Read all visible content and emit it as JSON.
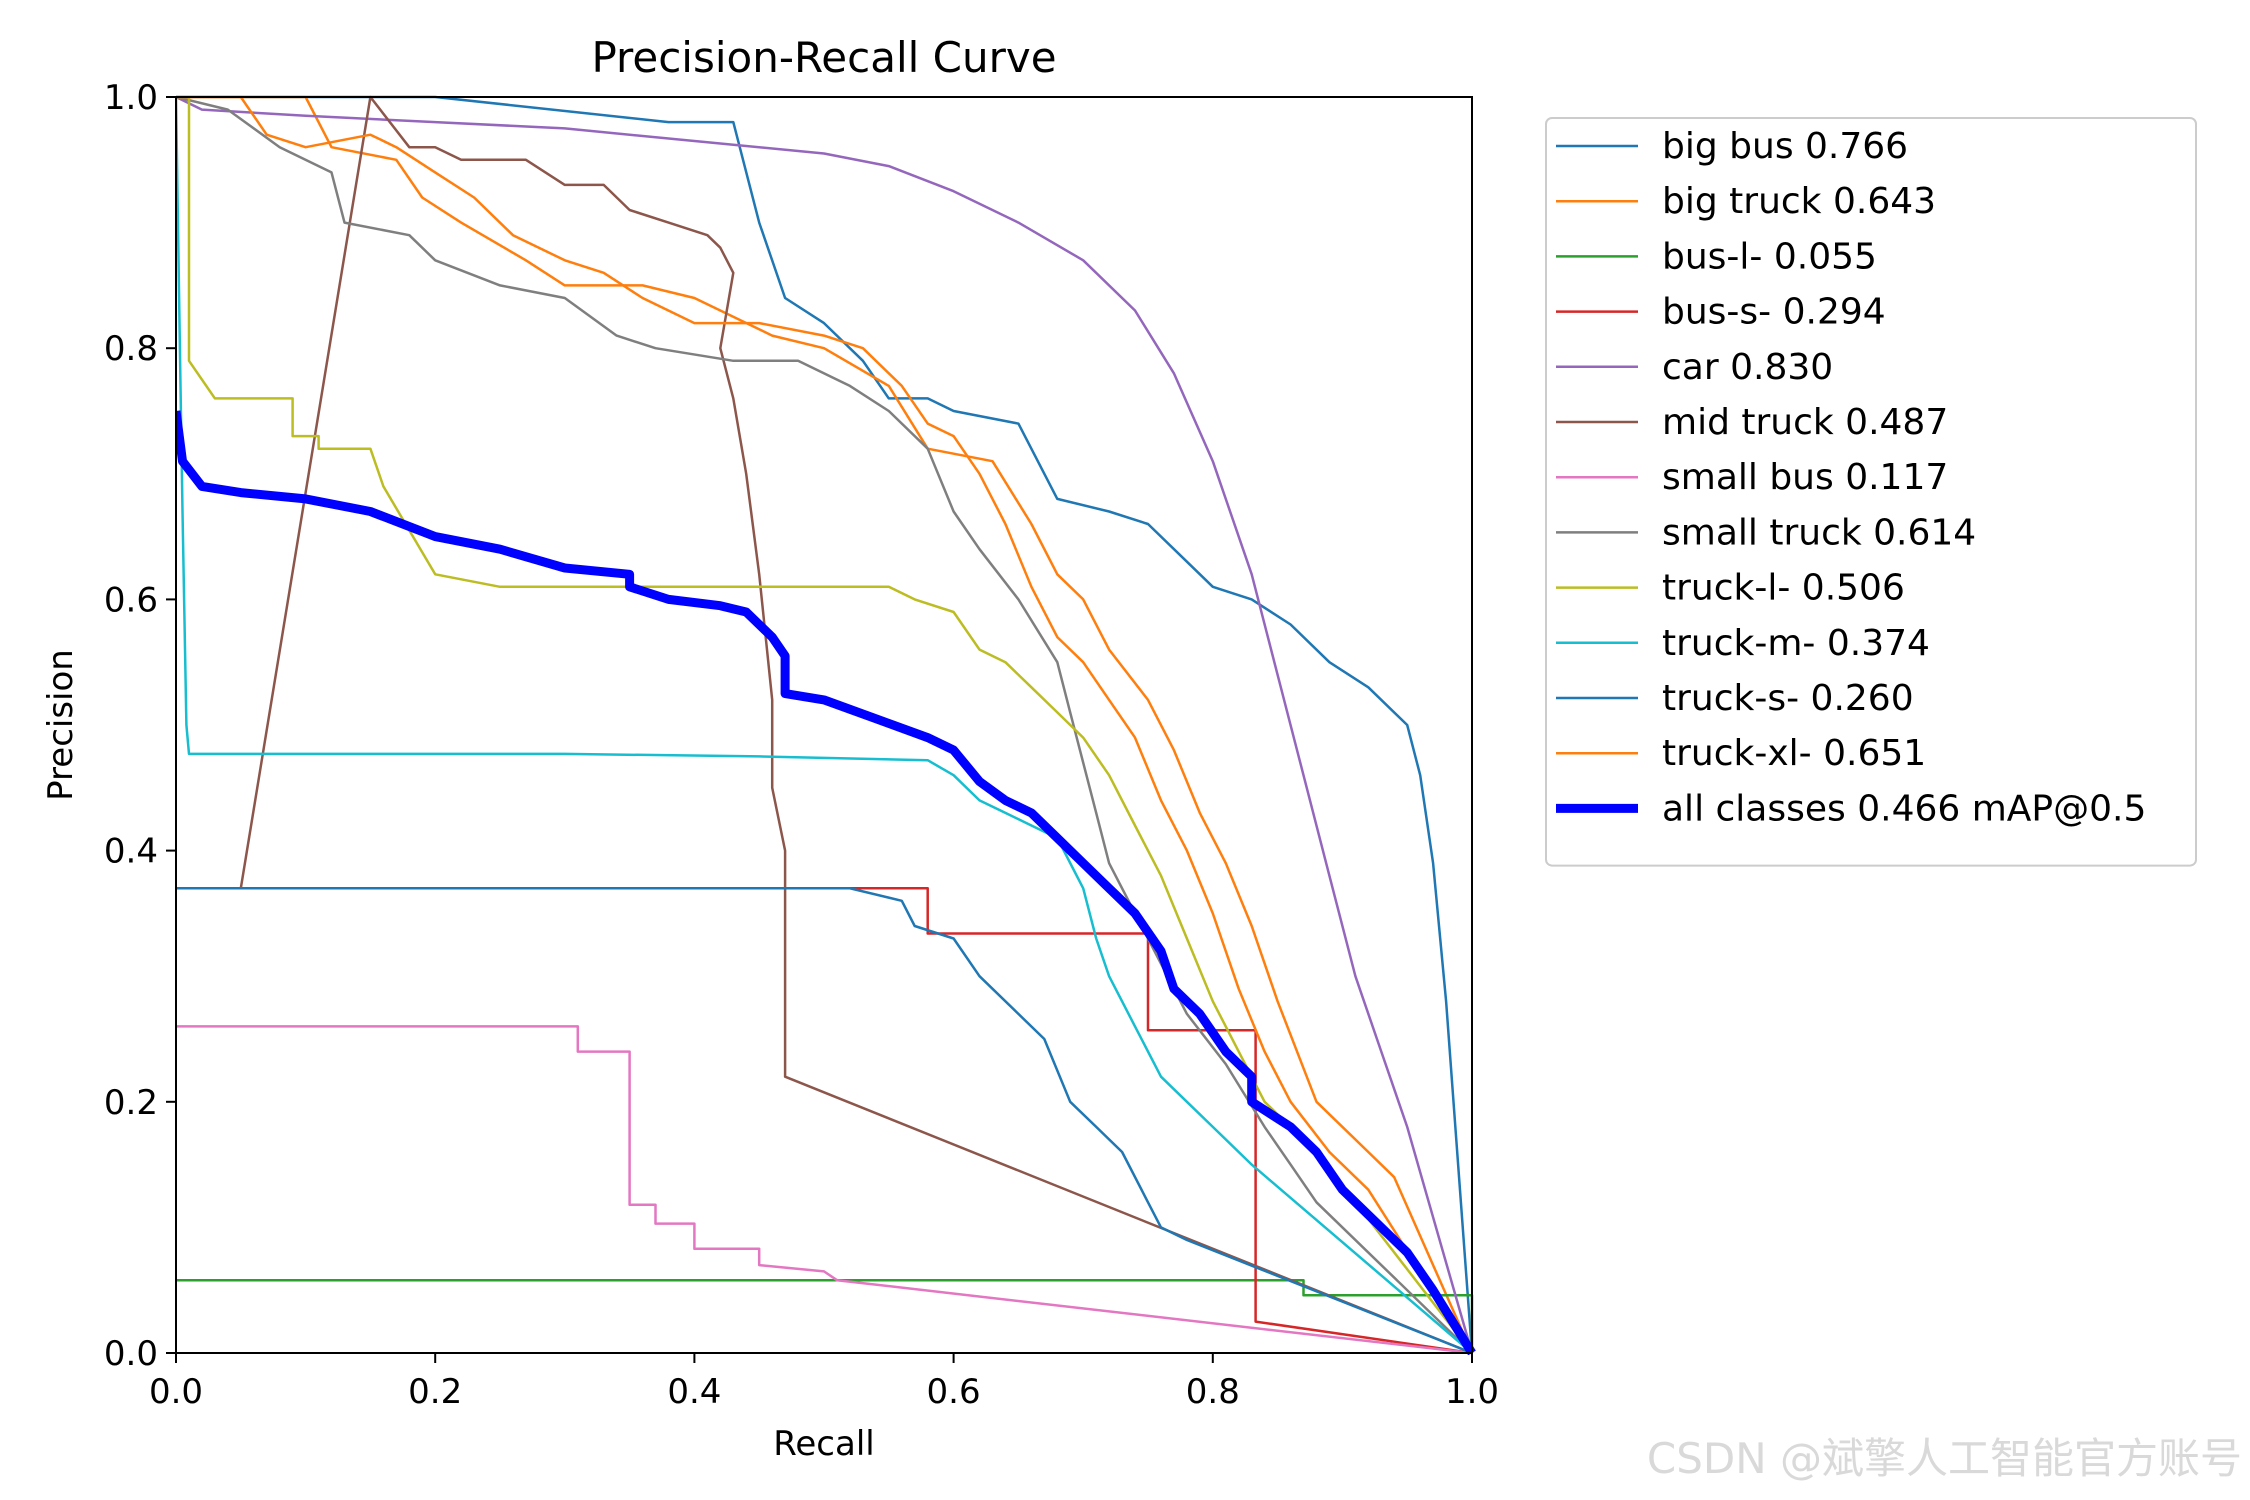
{
  "chart_data": {
    "type": "line",
    "title": "Precision-Recall Curve",
    "xlabel": "Recall",
    "ylabel": "Precision",
    "xlim": [
      0,
      1
    ],
    "ylim": [
      0,
      1
    ],
    "xticks": [
      "0.0",
      "0.2",
      "0.4",
      "0.6",
      "0.8",
      "1.0"
    ],
    "yticks": [
      "0.0",
      "0.2",
      "0.4",
      "0.6",
      "0.8",
      "1.0"
    ],
    "legend_position": "outside-right",
    "series": [
      {
        "name": "big bus 0.766",
        "color": "#1f77b4",
        "points": [
          [
            0,
            1
          ],
          [
            0.2,
            1
          ],
          [
            0.38,
            0.98
          ],
          [
            0.43,
            0.98
          ],
          [
            0.45,
            0.9
          ],
          [
            0.47,
            0.84
          ],
          [
            0.5,
            0.82
          ],
          [
            0.53,
            0.79
          ],
          [
            0.55,
            0.76
          ],
          [
            0.58,
            0.76
          ],
          [
            0.6,
            0.75
          ],
          [
            0.65,
            0.74
          ],
          [
            0.68,
            0.68
          ],
          [
            0.72,
            0.67
          ],
          [
            0.75,
            0.66
          ],
          [
            0.78,
            0.63
          ],
          [
            0.8,
            0.61
          ],
          [
            0.83,
            0.6
          ],
          [
            0.86,
            0.58
          ],
          [
            0.89,
            0.55
          ],
          [
            0.92,
            0.53
          ],
          [
            0.95,
            0.5
          ],
          [
            0.96,
            0.46
          ],
          [
            0.97,
            0.39
          ],
          [
            0.98,
            0.28
          ],
          [
            1,
            0
          ]
        ]
      },
      {
        "name": "big truck 0.643",
        "color": "#ff7f0e",
        "points": [
          [
            0,
            1
          ],
          [
            0.1,
            1
          ],
          [
            0.12,
            0.96
          ],
          [
            0.17,
            0.95
          ],
          [
            0.19,
            0.92
          ],
          [
            0.22,
            0.9
          ],
          [
            0.27,
            0.87
          ],
          [
            0.3,
            0.85
          ],
          [
            0.36,
            0.85
          ],
          [
            0.4,
            0.84
          ],
          [
            0.46,
            0.81
          ],
          [
            0.5,
            0.8
          ],
          [
            0.55,
            0.77
          ],
          [
            0.58,
            0.72
          ],
          [
            0.63,
            0.71
          ],
          [
            0.66,
            0.66
          ],
          [
            0.68,
            0.62
          ],
          [
            0.7,
            0.6
          ],
          [
            0.72,
            0.56
          ],
          [
            0.75,
            0.52
          ],
          [
            0.77,
            0.48
          ],
          [
            0.79,
            0.43
          ],
          [
            0.81,
            0.39
          ],
          [
            0.83,
            0.34
          ],
          [
            0.85,
            0.28
          ],
          [
            0.88,
            0.2
          ],
          [
            0.92,
            0.16
          ],
          [
            0.94,
            0.14
          ],
          [
            1,
            0
          ]
        ]
      },
      {
        "name": "bus-l- 0.055",
        "color": "#2ca02c",
        "points": [
          [
            0,
            0.058
          ],
          [
            0.87,
            0.058
          ],
          [
            0.87,
            0.046
          ],
          [
            1,
            0.046
          ],
          [
            1,
            0
          ]
        ]
      },
      {
        "name": "bus-s- 0.294",
        "color": "#d62728",
        "points": [
          [
            0,
            0.37
          ],
          [
            0.58,
            0.37
          ],
          [
            0.58,
            0.334
          ],
          [
            0.75,
            0.334
          ],
          [
            0.75,
            0.257
          ],
          [
            0.833,
            0.257
          ],
          [
            0.833,
            0.025
          ],
          [
            1,
            0
          ]
        ]
      },
      {
        "name": "car 0.830",
        "color": "#9467bd",
        "points": [
          [
            0,
            1
          ],
          [
            0.02,
            0.99
          ],
          [
            0.1,
            0.985
          ],
          [
            0.2,
            0.98
          ],
          [
            0.3,
            0.975
          ],
          [
            0.4,
            0.965
          ],
          [
            0.5,
            0.955
          ],
          [
            0.55,
            0.945
          ],
          [
            0.6,
            0.925
          ],
          [
            0.65,
            0.9
          ],
          [
            0.7,
            0.87
          ],
          [
            0.74,
            0.83
          ],
          [
            0.77,
            0.78
          ],
          [
            0.8,
            0.71
          ],
          [
            0.83,
            0.62
          ],
          [
            0.85,
            0.54
          ],
          [
            0.87,
            0.46
          ],
          [
            0.89,
            0.38
          ],
          [
            0.91,
            0.3
          ],
          [
            0.93,
            0.24
          ],
          [
            0.95,
            0.18
          ],
          [
            1,
            0
          ]
        ]
      },
      {
        "name": "mid truck 0.487",
        "color": "#8c564b",
        "points": [
          [
            0,
            0.37
          ],
          [
            0.05,
            0.37
          ],
          [
            0.15,
            1
          ],
          [
            0.18,
            0.96
          ],
          [
            0.2,
            0.96
          ],
          [
            0.22,
            0.95
          ],
          [
            0.27,
            0.95
          ],
          [
            0.3,
            0.93
          ],
          [
            0.33,
            0.93
          ],
          [
            0.35,
            0.91
          ],
          [
            0.38,
            0.9
          ],
          [
            0.41,
            0.89
          ],
          [
            0.42,
            0.88
          ],
          [
            0.43,
            0.86
          ],
          [
            0.42,
            0.8
          ],
          [
            0.43,
            0.76
          ],
          [
            0.44,
            0.7
          ],
          [
            0.45,
            0.62
          ],
          [
            0.46,
            0.52
          ],
          [
            0.46,
            0.45
          ],
          [
            0.47,
            0.4
          ],
          [
            0.47,
            0.3
          ],
          [
            0.47,
            0.22
          ],
          [
            1,
            0
          ]
        ]
      },
      {
        "name": "small bus 0.117",
        "color": "#e377c2",
        "points": [
          [
            0,
            0.26
          ],
          [
            0.31,
            0.26
          ],
          [
            0.31,
            0.24
          ],
          [
            0.35,
            0.24
          ],
          [
            0.35,
            0.118
          ],
          [
            0.37,
            0.118
          ],
          [
            0.37,
            0.103
          ],
          [
            0.4,
            0.103
          ],
          [
            0.4,
            0.083
          ],
          [
            0.45,
            0.083
          ],
          [
            0.45,
            0.07
          ],
          [
            0.5,
            0.065
          ],
          [
            0.51,
            0.058
          ],
          [
            1,
            0
          ]
        ]
      },
      {
        "name": "small truck 0.614",
        "color": "#7f7f7f",
        "points": [
          [
            0,
            1
          ],
          [
            0.04,
            0.99
          ],
          [
            0.08,
            0.96
          ],
          [
            0.12,
            0.94
          ],
          [
            0.13,
            0.9
          ],
          [
            0.18,
            0.89
          ],
          [
            0.2,
            0.87
          ],
          [
            0.25,
            0.85
          ],
          [
            0.3,
            0.84
          ],
          [
            0.34,
            0.81
          ],
          [
            0.37,
            0.8
          ],
          [
            0.43,
            0.79
          ],
          [
            0.48,
            0.79
          ],
          [
            0.52,
            0.77
          ],
          [
            0.55,
            0.75
          ],
          [
            0.58,
            0.72
          ],
          [
            0.6,
            0.67
          ],
          [
            0.62,
            0.64
          ],
          [
            0.65,
            0.6
          ],
          [
            0.68,
            0.55
          ],
          [
            0.69,
            0.51
          ],
          [
            0.7,
            0.47
          ],
          [
            0.71,
            0.43
          ],
          [
            0.72,
            0.39
          ],
          [
            0.75,
            0.33
          ],
          [
            0.78,
            0.27
          ],
          [
            0.81,
            0.23
          ],
          [
            0.84,
            0.18
          ],
          [
            0.86,
            0.15
          ],
          [
            0.88,
            0.12
          ],
          [
            1,
            0
          ]
        ]
      },
      {
        "name": "truck-l- 0.506",
        "color": "#bcbd22",
        "points": [
          [
            0,
            1
          ],
          [
            0.01,
            1
          ],
          [
            0.01,
            0.79
          ],
          [
            0.03,
            0.76
          ],
          [
            0.09,
            0.76
          ],
          [
            0.09,
            0.73
          ],
          [
            0.11,
            0.73
          ],
          [
            0.11,
            0.72
          ],
          [
            0.15,
            0.72
          ],
          [
            0.16,
            0.69
          ],
          [
            0.2,
            0.62
          ],
          [
            0.25,
            0.61
          ],
          [
            0.35,
            0.61
          ],
          [
            0.45,
            0.61
          ],
          [
            0.55,
            0.61
          ],
          [
            0.57,
            0.6
          ],
          [
            0.6,
            0.59
          ],
          [
            0.62,
            0.56
          ],
          [
            0.64,
            0.55
          ],
          [
            0.66,
            0.53
          ],
          [
            0.68,
            0.51
          ],
          [
            0.7,
            0.49
          ],
          [
            0.72,
            0.46
          ],
          [
            0.74,
            0.42
          ],
          [
            0.76,
            0.38
          ],
          [
            0.78,
            0.33
          ],
          [
            0.8,
            0.28
          ],
          [
            0.82,
            0.24
          ],
          [
            0.84,
            0.2
          ],
          [
            0.86,
            0.18
          ],
          [
            0.88,
            0.16
          ],
          [
            1,
            0
          ]
        ]
      },
      {
        "name": "truck-m- 0.374",
        "color": "#17becf",
        "points": [
          [
            0,
            1
          ],
          [
            0.003,
            0.8
          ],
          [
            0.005,
            0.67
          ],
          [
            0.008,
            0.5
          ],
          [
            0.01,
            0.477
          ],
          [
            0.3,
            0.477
          ],
          [
            0.45,
            0.475
          ],
          [
            0.58,
            0.472
          ],
          [
            0.6,
            0.46
          ],
          [
            0.62,
            0.44
          ],
          [
            0.64,
            0.43
          ],
          [
            0.66,
            0.42
          ],
          [
            0.68,
            0.41
          ],
          [
            0.7,
            0.37
          ],
          [
            0.71,
            0.33
          ],
          [
            0.72,
            0.3
          ],
          [
            0.74,
            0.26
          ],
          [
            0.76,
            0.22
          ],
          [
            0.78,
            0.2
          ],
          [
            0.8,
            0.18
          ],
          [
            0.83,
            0.15
          ],
          [
            1,
            0
          ]
        ]
      },
      {
        "name": "truck-s- 0.260",
        "color": "#1f77b4",
        "points": [
          [
            0,
            0.37
          ],
          [
            0.52,
            0.37
          ],
          [
            0.56,
            0.36
          ],
          [
            0.57,
            0.34
          ],
          [
            0.6,
            0.33
          ],
          [
            0.62,
            0.3
          ],
          [
            0.65,
            0.27
          ],
          [
            0.67,
            0.25
          ],
          [
            0.69,
            0.2
          ],
          [
            0.71,
            0.18
          ],
          [
            0.73,
            0.16
          ],
          [
            0.75,
            0.12
          ],
          [
            0.76,
            0.1
          ],
          [
            0.78,
            0.09
          ],
          [
            1,
            0
          ]
        ]
      },
      {
        "name": "truck-xl- 0.651",
        "color": "#ff7f0e",
        "points": [
          [
            0,
            1
          ],
          [
            0.05,
            1
          ],
          [
            0.07,
            0.97
          ],
          [
            0.1,
            0.96
          ],
          [
            0.15,
            0.97
          ],
          [
            0.17,
            0.96
          ],
          [
            0.2,
            0.94
          ],
          [
            0.23,
            0.92
          ],
          [
            0.26,
            0.89
          ],
          [
            0.3,
            0.87
          ],
          [
            0.33,
            0.86
          ],
          [
            0.36,
            0.84
          ],
          [
            0.4,
            0.82
          ],
          [
            0.45,
            0.82
          ],
          [
            0.5,
            0.81
          ],
          [
            0.53,
            0.8
          ],
          [
            0.56,
            0.77
          ],
          [
            0.58,
            0.74
          ],
          [
            0.6,
            0.73
          ],
          [
            0.62,
            0.7
          ],
          [
            0.64,
            0.66
          ],
          [
            0.66,
            0.61
          ],
          [
            0.68,
            0.57
          ],
          [
            0.7,
            0.55
          ],
          [
            0.72,
            0.52
          ],
          [
            0.74,
            0.49
          ],
          [
            0.76,
            0.44
          ],
          [
            0.78,
            0.4
          ],
          [
            0.8,
            0.35
          ],
          [
            0.82,
            0.29
          ],
          [
            0.84,
            0.24
          ],
          [
            0.86,
            0.2
          ],
          [
            0.89,
            0.16
          ],
          [
            0.92,
            0.13
          ],
          [
            1,
            0
          ]
        ]
      },
      {
        "name": "all classes 0.466 mAP@0.5",
        "color": "#0000ff",
        "bold": true,
        "points": [
          [
            0,
            0.75
          ],
          [
            0.005,
            0.71
          ],
          [
            0.02,
            0.69
          ],
          [
            0.05,
            0.685
          ],
          [
            0.1,
            0.68
          ],
          [
            0.15,
            0.67
          ],
          [
            0.2,
            0.65
          ],
          [
            0.25,
            0.64
          ],
          [
            0.3,
            0.625
          ],
          [
            0.35,
            0.62
          ],
          [
            0.35,
            0.61
          ],
          [
            0.38,
            0.6
          ],
          [
            0.42,
            0.595
          ],
          [
            0.44,
            0.59
          ],
          [
            0.46,
            0.57
          ],
          [
            0.47,
            0.555
          ],
          [
            0.47,
            0.525
          ],
          [
            0.5,
            0.52
          ],
          [
            0.54,
            0.505
          ],
          [
            0.58,
            0.49
          ],
          [
            0.6,
            0.48
          ],
          [
            0.62,
            0.455
          ],
          [
            0.64,
            0.44
          ],
          [
            0.66,
            0.43
          ],
          [
            0.68,
            0.41
          ],
          [
            0.7,
            0.39
          ],
          [
            0.72,
            0.37
          ],
          [
            0.74,
            0.35
          ],
          [
            0.76,
            0.32
          ],
          [
            0.77,
            0.29
          ],
          [
            0.79,
            0.27
          ],
          [
            0.81,
            0.24
          ],
          [
            0.83,
            0.22
          ],
          [
            0.83,
            0.2
          ],
          [
            0.86,
            0.18
          ],
          [
            0.88,
            0.16
          ],
          [
            0.9,
            0.13
          ],
          [
            0.92,
            0.11
          ],
          [
            0.95,
            0.08
          ],
          [
            0.97,
            0.05
          ],
          [
            1,
            0
          ]
        ]
      }
    ]
  },
  "watermark": "CSDN @斌擎人工智能官方账号"
}
